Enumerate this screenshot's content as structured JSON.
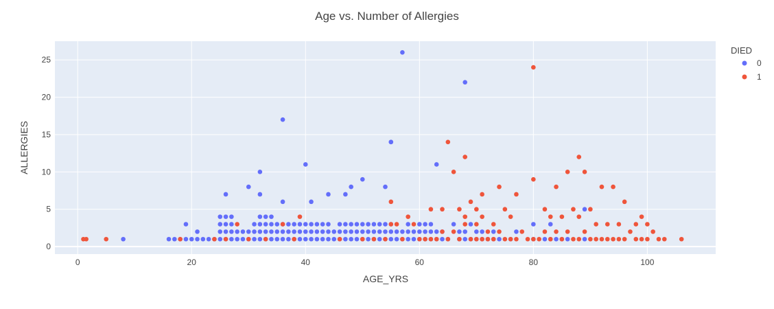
{
  "chart_data": {
    "type": "scatter",
    "title": "Age vs. Number of Allergies",
    "xlabel": "AGE_YRS",
    "ylabel": "ALLERGIES",
    "xlim": [
      -4,
      112
    ],
    "ylim": [
      -1,
      27.5
    ],
    "x_ticks": [
      0,
      20,
      40,
      60,
      80,
      100
    ],
    "y_ticks": [
      0,
      5,
      10,
      15,
      20,
      25
    ],
    "grid": true,
    "legend": {
      "title": "DIED",
      "placement": "top-right"
    },
    "colors": {
      "0": "#636efa",
      "1": "#EF553B",
      "plot_bg": "#e5ecf6",
      "grid": "#ffffff"
    },
    "series": [
      {
        "name": "0",
        "x": [
          8,
          16,
          17,
          18,
          19,
          19,
          20,
          21,
          21,
          22,
          23,
          24,
          25,
          25,
          25,
          25,
          26,
          26,
          26,
          26,
          26,
          27,
          27,
          27,
          27,
          28,
          28,
          29,
          29,
          30,
          30,
          30,
          31,
          31,
          31,
          32,
          32,
          32,
          32,
          32,
          33,
          33,
          33,
          33,
          34,
          34,
          34,
          34,
          35,
          35,
          35,
          36,
          36,
          36,
          36,
          37,
          37,
          37,
          38,
          38,
          38,
          39,
          39,
          39,
          40,
          40,
          40,
          40,
          41,
          41,
          41,
          41,
          42,
          42,
          42,
          43,
          43,
          43,
          44,
          44,
          44,
          44,
          45,
          45,
          46,
          46,
          46,
          47,
          47,
          47,
          47,
          48,
          48,
          48,
          48,
          49,
          49,
          49,
          50,
          50,
          50,
          50,
          51,
          51,
          51,
          52,
          52,
          52,
          53,
          53,
          53,
          54,
          54,
          54,
          54,
          55,
          55,
          55,
          55,
          56,
          56,
          57,
          57,
          58,
          58,
          58,
          59,
          59,
          60,
          60,
          60,
          61,
          61,
          61,
          62,
          62,
          62,
          63,
          63,
          64,
          64,
          65,
          66,
          67,
          67,
          68,
          68,
          69,
          69,
          70,
          70,
          71,
          71,
          72,
          73,
          73,
          74,
          76,
          77,
          80,
          80,
          82,
          83,
          83,
          84,
          85,
          86,
          89,
          89
        ],
        "y": [
          1,
          1,
          1,
          1,
          1,
          3,
          1,
          1,
          2,
          1,
          1,
          1,
          1,
          2,
          3,
          4,
          1,
          2,
          3,
          4,
          7,
          1,
          2,
          3,
          4,
          1,
          2,
          1,
          2,
          1,
          2,
          8,
          1,
          2,
          3,
          1,
          2,
          3,
          4,
          7,
          1,
          2,
          3,
          4,
          1,
          2,
          3,
          4,
          1,
          2,
          3,
          1,
          2,
          3,
          6,
          1,
          2,
          3,
          1,
          2,
          3,
          1,
          2,
          3,
          1,
          2,
          3,
          11,
          1,
          2,
          3,
          6,
          1,
          2,
          3,
          1,
          2,
          3,
          1,
          2,
          3,
          7,
          1,
          2,
          1,
          2,
          3,
          1,
          2,
          3,
          7,
          1,
          2,
          3,
          8,
          1,
          2,
          3,
          1,
          2,
          3,
          9,
          1,
          2,
          3,
          1,
          2,
          3,
          1,
          2,
          3,
          1,
          2,
          3,
          8,
          1,
          2,
          3,
          14,
          1,
          2,
          1,
          2,
          1,
          2,
          3,
          1,
          2,
          1,
          2,
          3,
          1,
          2,
          3,
          1,
          2,
          3,
          1,
          2,
          1,
          2,
          1,
          3,
          1,
          2,
          1,
          2,
          1,
          3,
          1,
          2,
          1,
          2,
          1,
          1,
          2,
          1,
          1,
          2,
          1,
          3,
          1,
          1,
          3,
          1,
          1,
          1,
          1,
          5
        ],
        "outliers": {
          "x": [
            57,
            68,
            36,
            32,
            55,
            63
          ],
          "y": [
            26,
            22,
            17,
            10,
            14,
            11
          ]
        }
      },
      {
        "name": "1",
        "x": [
          1,
          1.5,
          5,
          18,
          24,
          26,
          28,
          30,
          33,
          36,
          38,
          39,
          46,
          50,
          52,
          54,
          55,
          55,
          56,
          57,
          58,
          59,
          60,
          61,
          62,
          62,
          63,
          64,
          64,
          65,
          65,
          66,
          66,
          67,
          67,
          68,
          68,
          68,
          69,
          69,
          70,
          70,
          70,
          71,
          71,
          71,
          72,
          72,
          73,
          73,
          74,
          74,
          75,
          75,
          76,
          76,
          77,
          77,
          78,
          79,
          80,
          80,
          81,
          82,
          82,
          83,
          83,
          84,
          84,
          85,
          85,
          86,
          86,
          87,
          87,
          88,
          88,
          88,
          89,
          89,
          90,
          90,
          91,
          91,
          92,
          92,
          93,
          93,
          94,
          94,
          95,
          95,
          96,
          96,
          97,
          98,
          98,
          99,
          99,
          100,
          100,
          101,
          102,
          103,
          106
        ],
        "y": [
          1,
          1,
          1,
          1,
          1,
          1,
          3,
          1,
          1,
          3,
          1,
          4,
          1,
          1,
          1,
          1,
          3,
          6,
          3,
          1,
          4,
          3,
          1,
          1,
          1,
          5,
          1,
          2,
          5,
          1,
          14,
          2,
          10,
          1,
          5,
          3,
          4,
          12,
          1,
          6,
          1,
          3,
          5,
          1,
          4,
          7,
          1,
          2,
          1,
          3,
          2,
          8,
          1,
          5,
          1,
          4,
          1,
          7,
          2,
          1,
          1,
          9,
          1,
          2,
          5,
          1,
          4,
          2,
          8,
          1,
          4,
          2,
          10,
          1,
          5,
          1,
          4,
          12,
          2,
          10,
          1,
          5,
          1,
          3,
          1,
          8,
          1,
          3,
          1,
          8,
          1,
          3,
          1,
          6,
          2,
          1,
          3,
          1,
          4,
          1,
          3,
          2,
          1,
          1,
          1
        ],
        "outliers": {
          "x": [
            80
          ],
          "y": [
            24
          ]
        }
      }
    ]
  }
}
